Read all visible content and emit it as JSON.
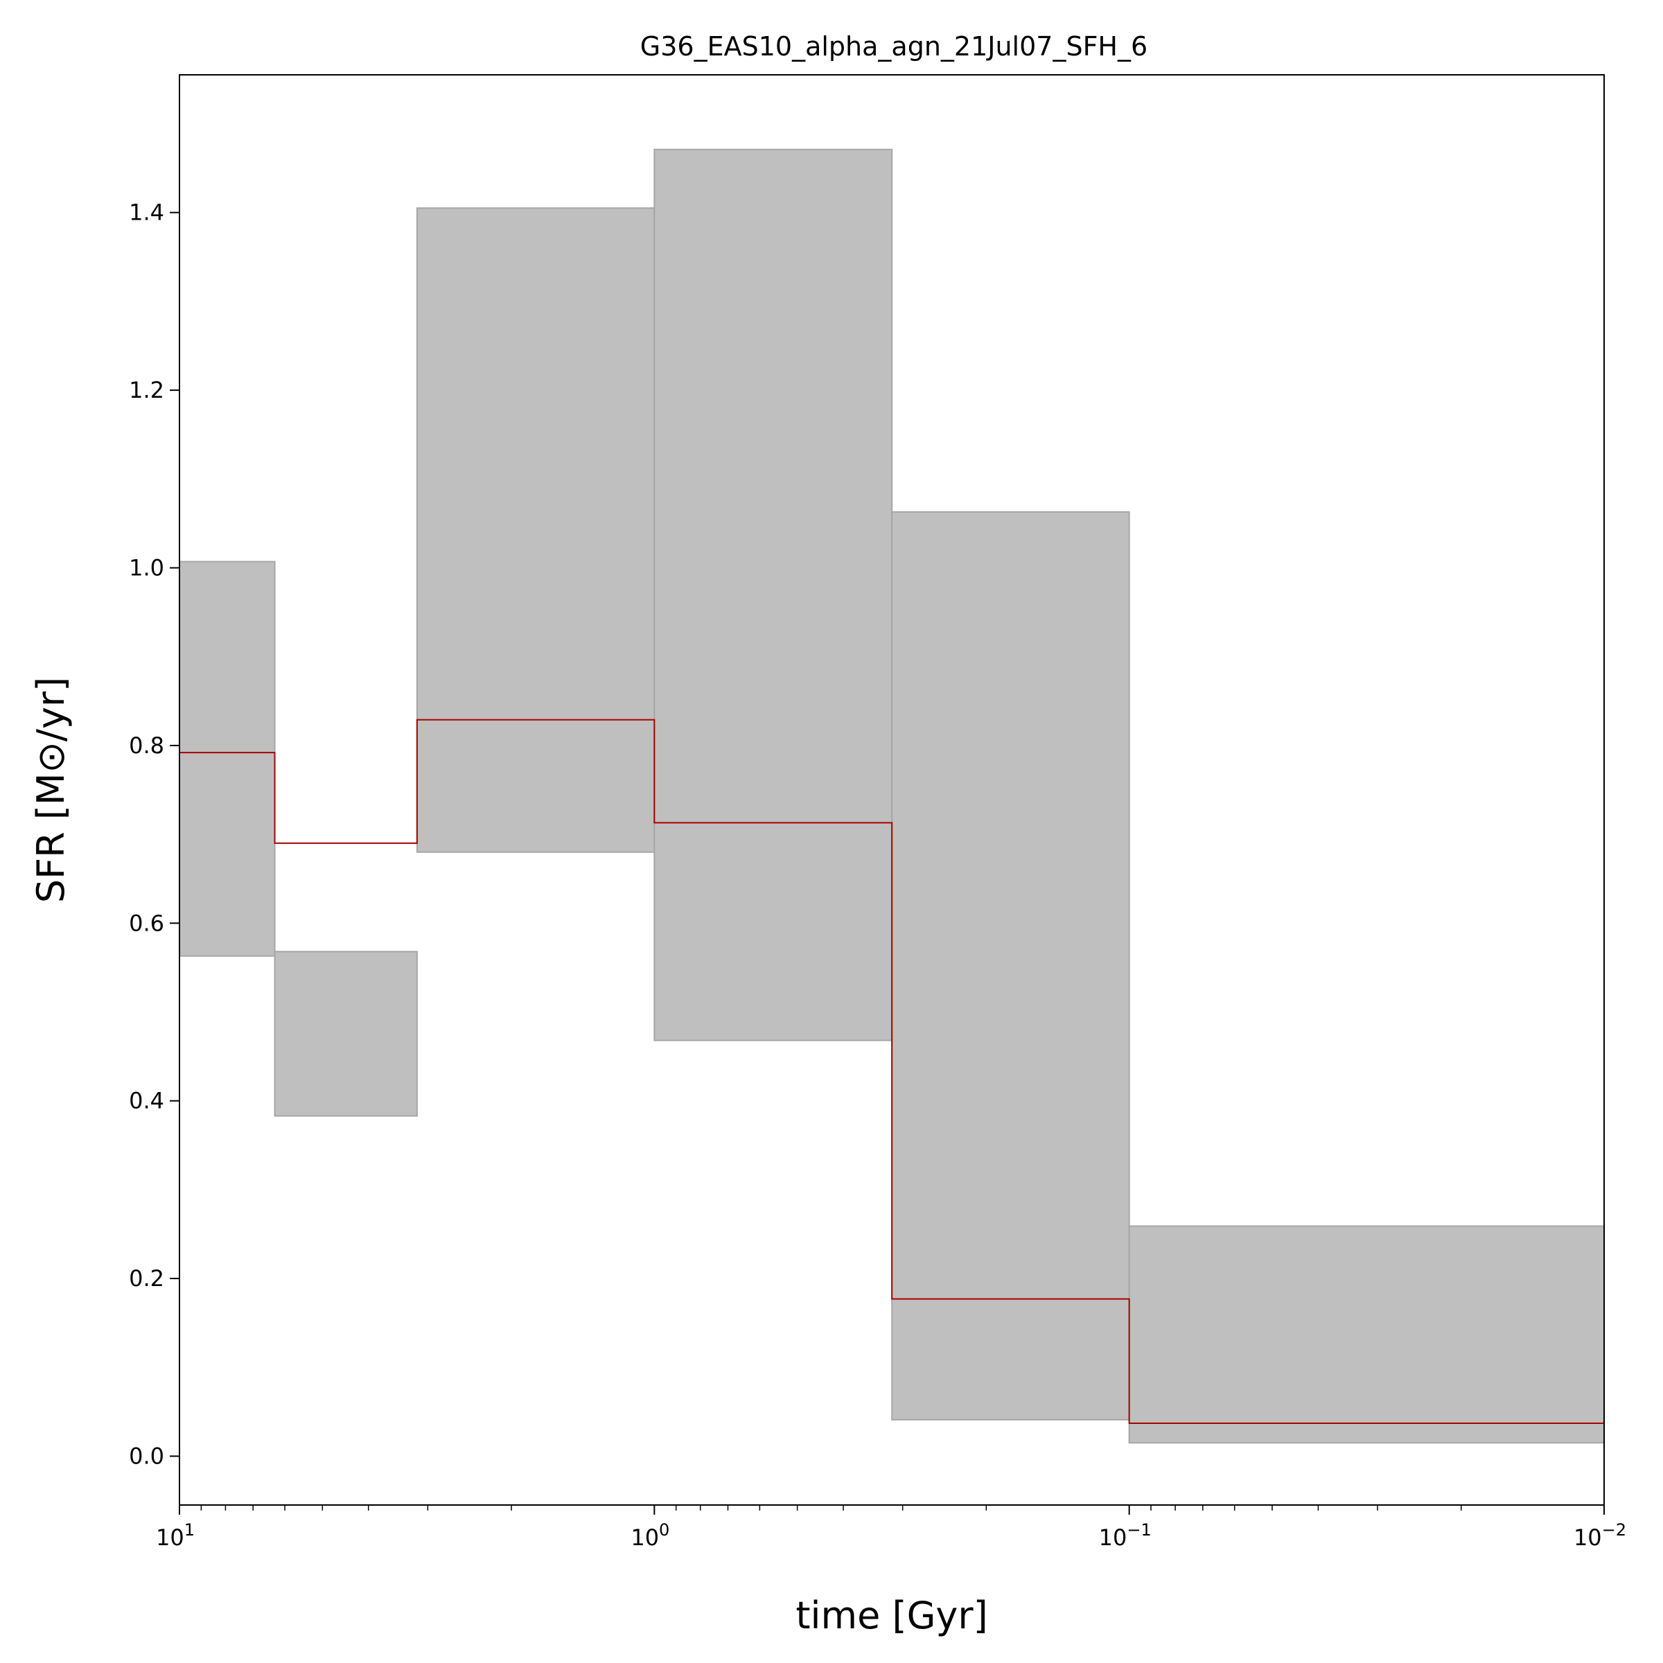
{
  "chart_data": {
    "type": "area",
    "title": "G36_EAS10_alpha_agn_21Jul07_SFH_6",
    "xlabel": "time [Gyr]",
    "ylabel": "SFR [M⊙/yr]",
    "xscale": "log",
    "x_inverted": true,
    "xlim": [
      10,
      0.01
    ],
    "ylim": [
      -0.055,
      1.555
    ],
    "xticks": [
      {
        "value": 10,
        "base": "10",
        "exp": "1"
      },
      {
        "value": 1,
        "base": "10",
        "exp": "0"
      },
      {
        "value": 0.1,
        "base": "10",
        "exp": "−1"
      },
      {
        "value": 0.01,
        "base": "10",
        "exp": "−2"
      }
    ],
    "yticks": [
      "0.0",
      "0.2",
      "0.4",
      "0.6",
      "0.8",
      "1.0",
      "1.2",
      "1.4"
    ],
    "grid": false,
    "bins": [
      {
        "t_start": 10.0,
        "t_end": 6.3,
        "median": 0.792,
        "lower": 0.563,
        "upper": 1.007
      },
      {
        "t_start": 6.3,
        "t_end": 3.16,
        "median": 0.69,
        "lower": 0.383,
        "upper": 0.568
      },
      {
        "t_start": 3.16,
        "t_end": 1.0,
        "median": 0.829,
        "lower": 0.68,
        "upper": 1.405
      },
      {
        "t_start": 1.0,
        "t_end": 0.316,
        "median": 0.713,
        "lower": 0.468,
        "upper": 1.471
      },
      {
        "t_start": 0.316,
        "t_end": 0.1,
        "median": 0.177,
        "lower": 0.041,
        "upper": 1.063
      },
      {
        "t_start": 0.1,
        "t_end": 0.01,
        "median": 0.037,
        "lower": 0.015,
        "upper": 0.259
      }
    ],
    "colors": {
      "band_fill": "#bfbfbf",
      "band_edge": "#a6a6a6",
      "median_line": "#aa0000"
    }
  }
}
